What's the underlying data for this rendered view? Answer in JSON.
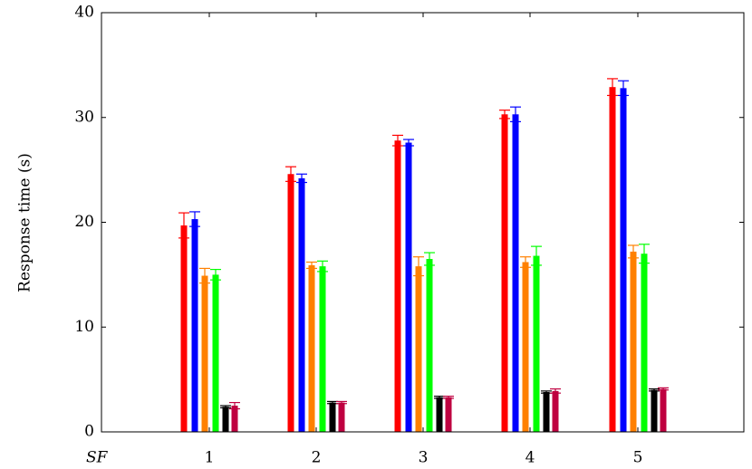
{
  "chart_data": {
    "type": "bar",
    "ylabel": "Response time (s)",
    "xlabel": "SF",
    "categories": [
      "1",
      "2",
      "3",
      "4",
      "5"
    ],
    "ylim": [
      0,
      40
    ],
    "yticks": [
      0,
      10,
      20,
      30,
      40
    ],
    "grid": false,
    "legend": "none",
    "series": [
      {
        "color": "#ff0000",
        "values": [
          19.7,
          24.6,
          27.8,
          30.3,
          32.9
        ],
        "errors": [
          1.2,
          0.7,
          0.5,
          0.4,
          0.8
        ]
      },
      {
        "color": "#0000ff",
        "values": [
          20.3,
          24.2,
          27.6,
          30.3,
          32.8
        ],
        "errors": [
          0.7,
          0.4,
          0.3,
          0.7,
          0.7
        ]
      },
      {
        "color": "#ff8000",
        "values": [
          14.9,
          15.9,
          15.8,
          16.2,
          17.2
        ],
        "errors": [
          0.7,
          0.3,
          0.9,
          0.5,
          0.6
        ]
      },
      {
        "color": "#00ff00",
        "values": [
          15.0,
          15.8,
          16.5,
          16.8,
          17.0
        ],
        "errors": [
          0.5,
          0.5,
          0.6,
          0.9,
          0.9
        ]
      },
      {
        "color": "#000000",
        "values": [
          2.4,
          2.8,
          3.3,
          3.8,
          4.0
        ],
        "errors": [
          0.1,
          0.1,
          0.1,
          0.1,
          0.1
        ]
      },
      {
        "color": "#bf0040",
        "values": [
          2.5,
          2.8,
          3.3,
          3.9,
          4.1
        ],
        "errors": [
          0.3,
          0.1,
          0.1,
          0.2,
          0.1
        ]
      }
    ]
  }
}
